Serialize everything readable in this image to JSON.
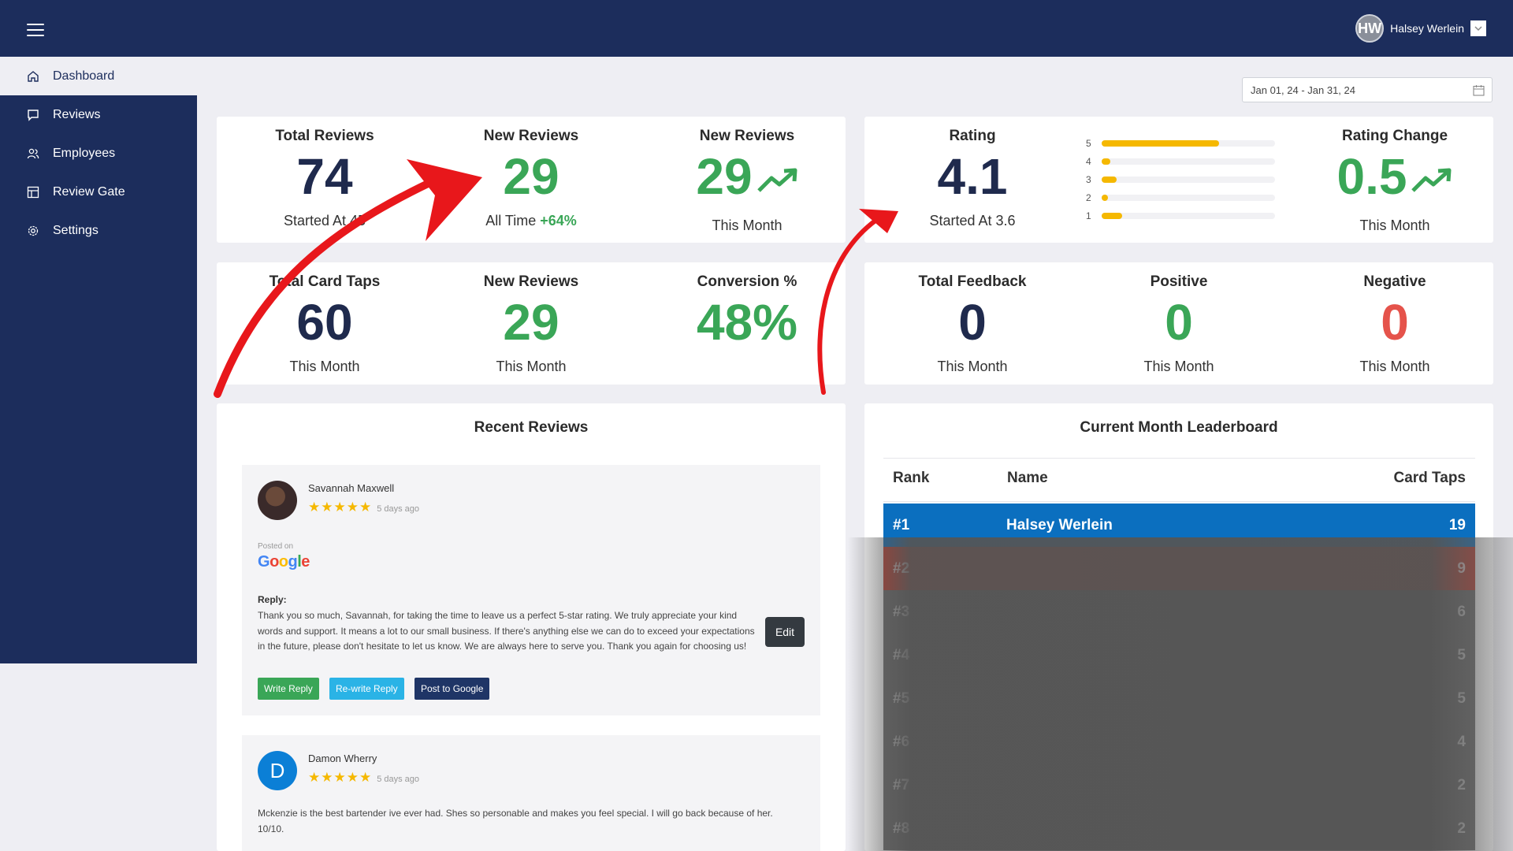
{
  "header": {
    "user_initials": "HW",
    "user_name": "Halsey Werlein"
  },
  "sidebar": {
    "items": [
      {
        "label": "Dashboard",
        "icon": "home-icon",
        "active": true
      },
      {
        "label": "Reviews",
        "icon": "message-square-icon",
        "active": false
      },
      {
        "label": "Employees",
        "icon": "users-icon",
        "active": false
      },
      {
        "label": "Review Gate",
        "icon": "layout-icon",
        "active": false
      },
      {
        "label": "Settings",
        "icon": "gear-icon",
        "active": false
      }
    ]
  },
  "date_range": {
    "value": "Jan 01, 24 - Jan 31, 24"
  },
  "stats_top_left": {
    "total_reviews": {
      "label": "Total Reviews",
      "value": "74",
      "sub": "Started At 45"
    },
    "new_reviews_all": {
      "label": "New Reviews",
      "value": "29",
      "sub_prefix": "All Time",
      "sub_pct": "+64%"
    },
    "new_reviews_month": {
      "label": "New Reviews",
      "value": "29",
      "sub": "This Month"
    }
  },
  "stats_top_right": {
    "rating": {
      "label": "Rating",
      "value": "4.1",
      "sub": "Started At 3.6"
    },
    "rating_distribution": [
      {
        "star": "5",
        "fraction": 0.68
      },
      {
        "star": "4",
        "fraction": 0.05
      },
      {
        "star": "3",
        "fraction": 0.09
      },
      {
        "star": "2",
        "fraction": 0.04
      },
      {
        "star": "1",
        "fraction": 0.12
      }
    ],
    "rating_change": {
      "label": "Rating Change",
      "value": "0.5",
      "sub": "This Month"
    }
  },
  "stats_mid_left": {
    "card_taps": {
      "label": "Total Card Taps",
      "value": "60",
      "sub": "This Month"
    },
    "new_reviews": {
      "label": "New Reviews",
      "value": "29",
      "sub": "This Month"
    },
    "conversion": {
      "label": "Conversion %",
      "value": "48%"
    }
  },
  "stats_mid_right": {
    "total_feedback": {
      "label": "Total Feedback",
      "value": "0",
      "sub": "This Month"
    },
    "positive": {
      "label": "Positive",
      "value": "0",
      "sub": "This Month"
    },
    "negative": {
      "label": "Negative",
      "value": "0",
      "sub": "This Month"
    }
  },
  "recent_reviews": {
    "title": "Recent Reviews",
    "items": [
      {
        "name": "Savannah Maxwell",
        "stars": "★★★★★",
        "time": "5 days ago",
        "posted_on": "Posted on",
        "platform": "Google",
        "reply_label": "Reply:",
        "reply": "Thank you so much, Savannah, for taking the time to leave us a perfect 5-star rating. We truly appreciate your kind words and support. It means a lot to our small business. If there's anything else we can do to exceed your expectations in the future, please don't hesitate to let us know. We are always here to serve you. Thank you again for choosing us!",
        "edit_label": "Edit",
        "write_reply": "Write Reply",
        "rewrite_reply": "Re-write Reply",
        "post_google": "Post to Google"
      },
      {
        "name": "Damon Wherry",
        "initial": "D",
        "stars": "★★★★★",
        "time": "5 days ago",
        "text": "Mckenzie is the best bartender ive ever had. Shes so personable and makes you feel special. I will go back because of her. 10/10."
      }
    ]
  },
  "leaderboard": {
    "title": "Current Month Leaderboard",
    "headers": {
      "rank": "Rank",
      "name": "Name",
      "taps": "Card Taps"
    },
    "rows": [
      {
        "rank": "#1",
        "name": "Halsey Werlein",
        "taps": "19",
        "color": "#0b6fbf"
      },
      {
        "rank": "#2",
        "name": "",
        "taps": "9",
        "color": "#c0392b"
      },
      {
        "rank": "#3",
        "name": "",
        "taps": "6",
        "color": "#6b6b6b"
      },
      {
        "rank": "#4",
        "name": "",
        "taps": "5",
        "color": "#6b6b6b"
      },
      {
        "rank": "#5",
        "name": "",
        "taps": "5",
        "color": "#6b6b6b"
      },
      {
        "rank": "#6",
        "name": "",
        "taps": "4",
        "color": "#6b6b6b"
      },
      {
        "rank": "#7",
        "name": "",
        "taps": "2",
        "color": "#6b6b6b"
      },
      {
        "rank": "#8",
        "name": "",
        "taps": "2",
        "color": "#6b6b6b"
      }
    ]
  }
}
